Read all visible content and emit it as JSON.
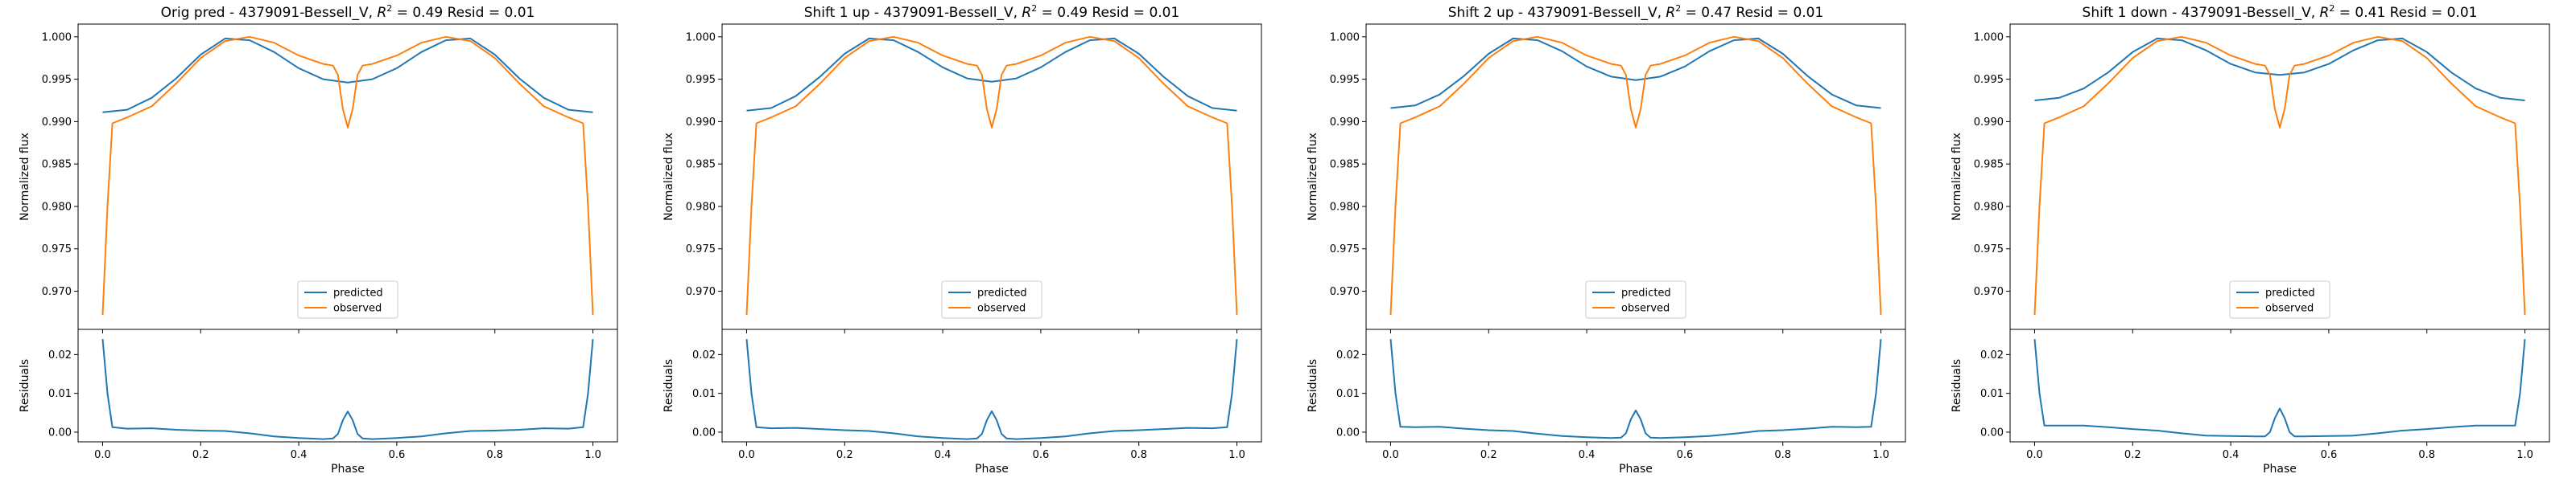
{
  "colors": {
    "predicted": "#1f77b4",
    "observed": "#ff7f0e"
  },
  "chart_data": [
    {
      "type": "line",
      "title_prefix": "Orig pred - 4379091-Bessell_V, ",
      "r2_symbol": "R",
      "r2_sup": "2",
      "title_suffix": " = 0.49 Resid = 0.01",
      "xlabel": "Phase",
      "ylabel": "Normalized flux",
      "ylabel_resid": "Residuals",
      "xlim": [
        -0.05,
        1.05
      ],
      "ylim": [
        0.9655,
        1.0015
      ],
      "ylim_resid": [
        -0.0025,
        0.0265
      ],
      "xticks": [
        "0.0",
        "0.2",
        "0.4",
        "0.6",
        "0.8",
        "1.0"
      ],
      "yticks": [
        "0.970",
        "0.975",
        "0.980",
        "0.985",
        "0.990",
        "0.995",
        "1.000"
      ],
      "yticks_resid": [
        "0.00",
        "0.01",
        "0.02"
      ],
      "legend": [
        "predicted",
        "observed"
      ],
      "legend_position": "lower center",
      "predicted": {
        "x": [
          0.0,
          0.05,
          0.1,
          0.15,
          0.2,
          0.25,
          0.3,
          0.35,
          0.4,
          0.45,
          0.5,
          0.55,
          0.6,
          0.65,
          0.7,
          0.75,
          0.8,
          0.85,
          0.9,
          0.95,
          1.0
        ],
        "y": [
          0.9911,
          0.9914,
          0.9928,
          0.9951,
          0.9979,
          0.9998,
          0.9996,
          0.9982,
          0.9963,
          0.995,
          0.9946,
          0.995,
          0.9963,
          0.9982,
          0.9996,
          0.9998,
          0.9979,
          0.9951,
          0.9928,
          0.9914,
          0.9911
        ]
      },
      "observed": {
        "x": [
          0.0,
          0.01,
          0.02,
          0.05,
          0.1,
          0.15,
          0.2,
          0.25,
          0.3,
          0.35,
          0.4,
          0.45,
          0.47,
          0.48,
          0.49,
          0.5,
          0.51,
          0.52,
          0.53,
          0.55,
          0.6,
          0.65,
          0.7,
          0.75,
          0.8,
          0.85,
          0.9,
          0.95,
          0.98,
          0.99,
          1.0
        ],
        "y": [
          0.9672,
          0.98,
          0.9898,
          0.9905,
          0.9918,
          0.9945,
          0.9975,
          0.9995,
          1.0,
          0.9993,
          0.9978,
          0.9968,
          0.9966,
          0.9955,
          0.9915,
          0.9893,
          0.9915,
          0.9955,
          0.9966,
          0.9968,
          0.9978,
          0.9993,
          1.0,
          0.9995,
          0.9975,
          0.9945,
          0.9918,
          0.9905,
          0.9898,
          0.98,
          0.9672
        ]
      },
      "residuals": {
        "x": [
          0.0,
          0.01,
          0.02,
          0.05,
          0.1,
          0.15,
          0.2,
          0.25,
          0.3,
          0.35,
          0.4,
          0.45,
          0.47,
          0.48,
          0.49,
          0.5,
          0.51,
          0.52,
          0.53,
          0.55,
          0.6,
          0.65,
          0.7,
          0.75,
          0.8,
          0.85,
          0.9,
          0.95,
          0.98,
          0.99,
          1.0
        ],
        "y": [
          0.024,
          0.01,
          0.0013,
          0.0009,
          0.001,
          0.0006,
          0.0004,
          0.0003,
          -0.0003,
          -0.0011,
          -0.0015,
          -0.0018,
          -0.0016,
          -0.0005,
          0.0031,
          0.0053,
          0.0031,
          -0.0005,
          -0.0016,
          -0.0018,
          -0.0015,
          -0.0011,
          -0.0003,
          0.0003,
          0.0004,
          0.0006,
          0.001,
          0.0009,
          0.0013,
          0.01,
          0.024
        ]
      }
    },
    {
      "type": "line",
      "title_prefix": "Shift 1 up - 4379091-Bessell_V, ",
      "r2_symbol": "R",
      "r2_sup": "2",
      "title_suffix": " = 0.49 Resid = 0.01",
      "xlabel": "Phase",
      "ylabel": "Normalized flux",
      "ylabel_resid": "Residuals",
      "xlim": [
        -0.05,
        1.05
      ],
      "ylim": [
        0.9655,
        1.0015
      ],
      "ylim_resid": [
        -0.0025,
        0.0265
      ],
      "xticks": [
        "0.0",
        "0.2",
        "0.4",
        "0.6",
        "0.8",
        "1.0"
      ],
      "yticks": [
        "0.970",
        "0.975",
        "0.980",
        "0.985",
        "0.990",
        "0.995",
        "1.000"
      ],
      "yticks_resid": [
        "0.00",
        "0.01",
        "0.02"
      ],
      "legend": [
        "predicted",
        "observed"
      ],
      "legend_position": "lower center",
      "predicted": {
        "x": [
          0.0,
          0.05,
          0.1,
          0.15,
          0.2,
          0.25,
          0.3,
          0.35,
          0.4,
          0.45,
          0.5,
          0.55,
          0.6,
          0.65,
          0.7,
          0.75,
          0.8,
          0.85,
          0.9,
          0.95,
          1.0
        ],
        "y": [
          0.9913,
          0.9916,
          0.993,
          0.9953,
          0.998,
          0.9998,
          0.9996,
          0.9982,
          0.9964,
          0.9951,
          0.9947,
          0.9951,
          0.9964,
          0.9982,
          0.9996,
          0.9998,
          0.998,
          0.9953,
          0.993,
          0.9916,
          0.9913
        ]
      },
      "observed": {
        "x": [
          0.0,
          0.01,
          0.02,
          0.05,
          0.1,
          0.15,
          0.2,
          0.25,
          0.3,
          0.35,
          0.4,
          0.45,
          0.47,
          0.48,
          0.49,
          0.5,
          0.51,
          0.52,
          0.53,
          0.55,
          0.6,
          0.65,
          0.7,
          0.75,
          0.8,
          0.85,
          0.9,
          0.95,
          0.98,
          0.99,
          1.0
        ],
        "y": [
          0.9672,
          0.98,
          0.9898,
          0.9905,
          0.9918,
          0.9945,
          0.9975,
          0.9995,
          1.0,
          0.9993,
          0.9978,
          0.9968,
          0.9966,
          0.9955,
          0.9915,
          0.9893,
          0.9915,
          0.9955,
          0.9966,
          0.9968,
          0.9978,
          0.9993,
          1.0,
          0.9995,
          0.9975,
          0.9945,
          0.9918,
          0.9905,
          0.9898,
          0.98,
          0.9672
        ]
      },
      "residuals": {
        "x": [
          0.0,
          0.01,
          0.02,
          0.05,
          0.1,
          0.15,
          0.2,
          0.25,
          0.3,
          0.35,
          0.4,
          0.45,
          0.47,
          0.48,
          0.49,
          0.5,
          0.51,
          0.52,
          0.53,
          0.55,
          0.6,
          0.65,
          0.7,
          0.75,
          0.8,
          0.85,
          0.9,
          0.95,
          0.98,
          0.99,
          1.0
        ],
        "y": [
          0.024,
          0.01,
          0.0013,
          0.001,
          0.0011,
          0.0008,
          0.0005,
          0.0003,
          -0.0003,
          -0.0011,
          -0.0015,
          -0.0018,
          -0.0016,
          -0.0005,
          0.0031,
          0.0054,
          0.0031,
          -0.0005,
          -0.0016,
          -0.0018,
          -0.0015,
          -0.0011,
          -0.0003,
          0.0003,
          0.0005,
          0.0008,
          0.0011,
          0.001,
          0.0013,
          0.01,
          0.024
        ]
      }
    },
    {
      "type": "line",
      "title_prefix": "Shift 2 up - 4379091-Bessell_V, ",
      "r2_symbol": "R",
      "r2_sup": "2",
      "title_suffix": " = 0.47 Resid = 0.01",
      "xlabel": "Phase",
      "ylabel": "Normalized flux",
      "ylabel_resid": "Residuals",
      "xlim": [
        -0.05,
        1.05
      ],
      "ylim": [
        0.9655,
        1.0015
      ],
      "ylim_resid": [
        -0.0025,
        0.0265
      ],
      "xticks": [
        "0.0",
        "0.2",
        "0.4",
        "0.6",
        "0.8",
        "1.0"
      ],
      "yticks": [
        "0.970",
        "0.975",
        "0.980",
        "0.985",
        "0.990",
        "0.995",
        "1.000"
      ],
      "yticks_resid": [
        "0.00",
        "0.01",
        "0.02"
      ],
      "legend": [
        "predicted",
        "observed"
      ],
      "legend_position": "lower center",
      "predicted": {
        "x": [
          0.0,
          0.05,
          0.1,
          0.15,
          0.2,
          0.25,
          0.3,
          0.35,
          0.4,
          0.45,
          0.5,
          0.55,
          0.6,
          0.65,
          0.7,
          0.75,
          0.8,
          0.85,
          0.9,
          0.95,
          1.0
        ],
        "y": [
          0.9916,
          0.9919,
          0.9932,
          0.9954,
          0.998,
          0.9998,
          0.9996,
          0.9983,
          0.9965,
          0.9953,
          0.9949,
          0.9953,
          0.9965,
          0.9983,
          0.9996,
          0.9998,
          0.998,
          0.9954,
          0.9932,
          0.9919,
          0.9916
        ]
      },
      "observed": {
        "x": [
          0.0,
          0.01,
          0.02,
          0.05,
          0.1,
          0.15,
          0.2,
          0.25,
          0.3,
          0.35,
          0.4,
          0.45,
          0.47,
          0.48,
          0.49,
          0.5,
          0.51,
          0.52,
          0.53,
          0.55,
          0.6,
          0.65,
          0.7,
          0.75,
          0.8,
          0.85,
          0.9,
          0.95,
          0.98,
          0.99,
          1.0
        ],
        "y": [
          0.9672,
          0.98,
          0.9898,
          0.9905,
          0.9918,
          0.9945,
          0.9975,
          0.9995,
          1.0,
          0.9993,
          0.9978,
          0.9968,
          0.9966,
          0.9955,
          0.9915,
          0.9893,
          0.9915,
          0.9955,
          0.9966,
          0.9968,
          0.9978,
          0.9993,
          1.0,
          0.9995,
          0.9975,
          0.9945,
          0.9918,
          0.9905,
          0.9898,
          0.98,
          0.9672
        ]
      },
      "residuals": {
        "x": [
          0.0,
          0.01,
          0.02,
          0.05,
          0.1,
          0.15,
          0.2,
          0.25,
          0.3,
          0.35,
          0.4,
          0.45,
          0.47,
          0.48,
          0.49,
          0.5,
          0.51,
          0.52,
          0.53,
          0.55,
          0.6,
          0.65,
          0.7,
          0.75,
          0.8,
          0.85,
          0.9,
          0.95,
          0.98,
          0.99,
          1.0
        ],
        "y": [
          0.024,
          0.01,
          0.0014,
          0.0013,
          0.0014,
          0.0009,
          0.0005,
          0.0003,
          -0.0004,
          -0.001,
          -0.0013,
          -0.0015,
          -0.0014,
          -0.0003,
          0.0033,
          0.0056,
          0.0033,
          -0.0003,
          -0.0014,
          -0.0015,
          -0.0013,
          -0.001,
          -0.0004,
          0.0003,
          0.0005,
          0.0009,
          0.0014,
          0.0013,
          0.0014,
          0.01,
          0.024
        ]
      }
    },
    {
      "type": "line",
      "title_prefix": "Shift 1 down - 4379091-Bessell_V, ",
      "r2_symbol": "R",
      "r2_sup": "2",
      "title_suffix": " = 0.41 Resid = 0.01",
      "xlabel": "Phase",
      "ylabel": "Normalized flux",
      "ylabel_resid": "Residuals",
      "xlim": [
        -0.05,
        1.05
      ],
      "ylim": [
        0.9655,
        1.0015
      ],
      "ylim_resid": [
        -0.0025,
        0.0265
      ],
      "xticks": [
        "0.0",
        "0.2",
        "0.4",
        "0.6",
        "0.8",
        "1.0"
      ],
      "yticks": [
        "0.970",
        "0.975",
        "0.980",
        "0.985",
        "0.990",
        "0.995",
        "1.000"
      ],
      "yticks_resid": [
        "0.00",
        "0.01",
        "0.02"
      ],
      "legend": [
        "predicted",
        "observed"
      ],
      "legend_position": "lower center",
      "predicted": {
        "x": [
          0.0,
          0.05,
          0.1,
          0.15,
          0.2,
          0.25,
          0.3,
          0.35,
          0.4,
          0.45,
          0.5,
          0.55,
          0.6,
          0.65,
          0.7,
          0.75,
          0.8,
          0.85,
          0.9,
          0.95,
          1.0
        ],
        "y": [
          0.9925,
          0.9928,
          0.9939,
          0.9958,
          0.9982,
          0.9998,
          0.9996,
          0.9984,
          0.9968,
          0.9958,
          0.9955,
          0.9958,
          0.9968,
          0.9984,
          0.9996,
          0.9998,
          0.9982,
          0.9958,
          0.9939,
          0.9928,
          0.9925
        ]
      },
      "observed": {
        "x": [
          0.0,
          0.01,
          0.02,
          0.05,
          0.1,
          0.15,
          0.2,
          0.25,
          0.3,
          0.35,
          0.4,
          0.45,
          0.47,
          0.48,
          0.49,
          0.5,
          0.51,
          0.52,
          0.53,
          0.55,
          0.6,
          0.65,
          0.7,
          0.75,
          0.8,
          0.85,
          0.9,
          0.95,
          0.98,
          0.99,
          1.0
        ],
        "y": [
          0.9672,
          0.98,
          0.9898,
          0.9905,
          0.9918,
          0.9945,
          0.9975,
          0.9995,
          1.0,
          0.9993,
          0.9978,
          0.9968,
          0.9966,
          0.9955,
          0.9915,
          0.9893,
          0.9915,
          0.9955,
          0.9966,
          0.9968,
          0.9978,
          0.9993,
          1.0,
          0.9995,
          0.9975,
          0.9945,
          0.9918,
          0.9905,
          0.9898,
          0.98,
          0.9672
        ]
      },
      "residuals": {
        "x": [
          0.0,
          0.01,
          0.02,
          0.05,
          0.1,
          0.15,
          0.2,
          0.25,
          0.3,
          0.35,
          0.4,
          0.45,
          0.47,
          0.48,
          0.49,
          0.5,
          0.51,
          0.52,
          0.53,
          0.55,
          0.6,
          0.65,
          0.7,
          0.75,
          0.8,
          0.85,
          0.9,
          0.95,
          0.98,
          0.99,
          1.0
        ],
        "y": [
          0.024,
          0.01,
          0.0017,
          0.0017,
          0.0017,
          0.0013,
          0.0008,
          0.0004,
          -0.0003,
          -0.0009,
          -0.001,
          -0.0011,
          -0.0011,
          0.0,
          0.0036,
          0.0061,
          0.0036,
          0.0,
          -0.0011,
          -0.0011,
          -0.001,
          -0.0009,
          -0.0003,
          0.0004,
          0.0008,
          0.0013,
          0.0017,
          0.0017,
          0.0017,
          0.01,
          0.024
        ]
      }
    }
  ]
}
